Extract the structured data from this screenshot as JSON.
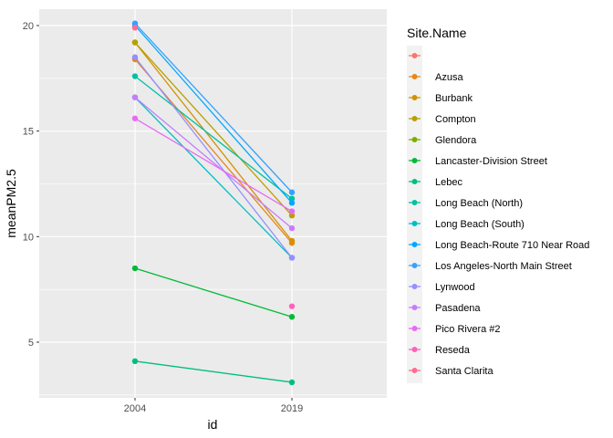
{
  "chart_data": {
    "type": "line",
    "title": "",
    "xlabel": "id",
    "ylabel": "meanPM2.5",
    "categories": [
      "2004",
      "2019"
    ],
    "ylim": [
      2.5,
      21.3
    ],
    "y_ticks": [
      5,
      10,
      15,
      20
    ],
    "grid": true,
    "legend": {
      "title": "Site.Name",
      "placement": "right"
    },
    "series": [
      {
        "name": "",
        "color": "#F8766D",
        "values": [
          null,
          null
        ]
      },
      {
        "name": "Azusa",
        "color": "#E7861B",
        "values": [
          18.4,
          9.7
        ]
      },
      {
        "name": "Burbank",
        "color": "#D39200",
        "values": [
          19.2,
          9.8
        ]
      },
      {
        "name": "Compton",
        "color": "#B79F00",
        "values": [
          19.2,
          11.0
        ]
      },
      {
        "name": "Glendora",
        "color": "#7CAE00",
        "values": [
          null,
          null
        ]
      },
      {
        "name": "Lancaster-Division Street",
        "color": "#00BA38",
        "values": [
          8.5,
          6.2
        ]
      },
      {
        "name": "Lebec",
        "color": "#00BF7D",
        "values": [
          4.1,
          3.1
        ]
      },
      {
        "name": "Long Beach (North)",
        "color": "#00C1A3",
        "values": [
          17.6,
          11.8
        ]
      },
      {
        "name": "Long Beach (South)",
        "color": "#00BFC4",
        "values": [
          16.6,
          9.0
        ]
      },
      {
        "name": "Long Beach-Route 710 Near Road",
        "color": "#00A9FF",
        "values": [
          20.0,
          11.6
        ]
      },
      {
        "name": "Los Angeles-North Main Street",
        "color": "#35A2FF",
        "values": [
          20.1,
          12.1
        ]
      },
      {
        "name": "Lynwood",
        "color": "#9590FF",
        "values": [
          18.5,
          9.0
        ]
      },
      {
        "name": "Pasadena",
        "color": "#C77CFF",
        "values": [
          16.6,
          10.4
        ]
      },
      {
        "name": "Pico Rivera #2",
        "color": "#E76BF3",
        "values": [
          15.6,
          11.2
        ]
      },
      {
        "name": "Reseda",
        "color": "#FF62BC",
        "values": [
          null,
          6.7
        ]
      },
      {
        "name": "Santa Clarita",
        "color": "#FF6C91",
        "values": [
          19.9,
          null
        ]
      }
    ]
  }
}
